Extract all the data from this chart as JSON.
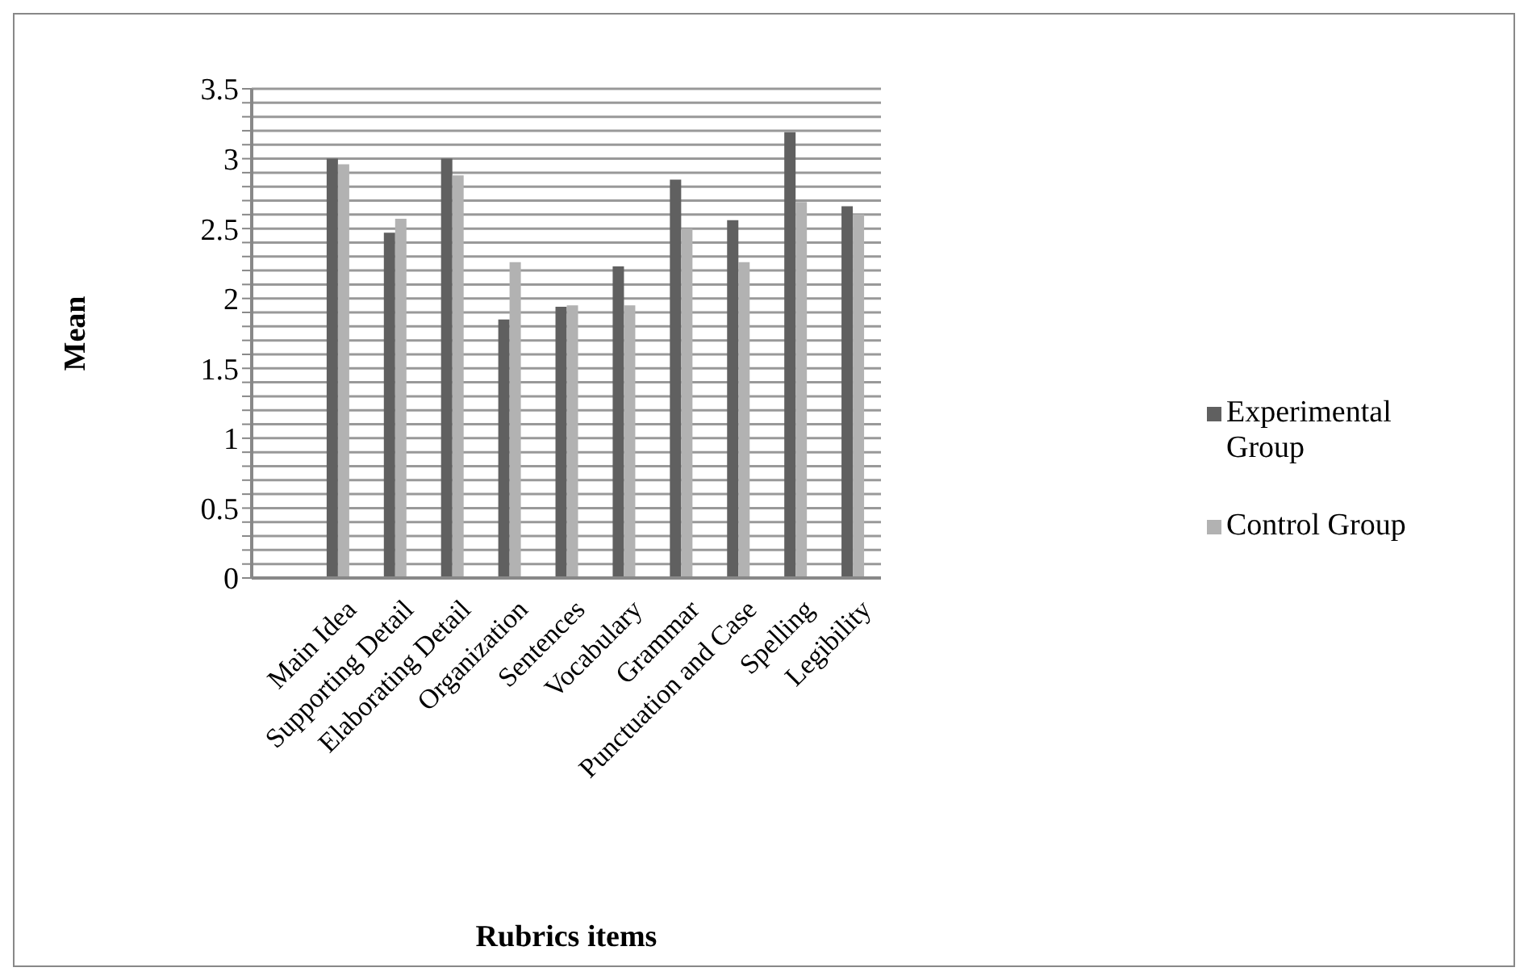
{
  "chart_data": {
    "type": "bar",
    "xlabel": "Rubrics items",
    "ylabel": "Mean",
    "categories": [
      null,
      "Main Idea",
      "Supporting Detail",
      "Elaborating Detail",
      "Organization",
      "Sentences",
      "Vocabulary",
      "Grammar",
      "Punctuation and Case",
      "Spelling",
      "Legibility"
    ],
    "series": [
      {
        "name": "Experimental Group",
        "color": "#606060",
        "values": [
          null,
          3.0,
          2.47,
          3.0,
          1.85,
          1.94,
          2.23,
          2.85,
          2.56,
          3.19,
          2.66
        ]
      },
      {
        "name": "Control Group",
        "color": "#b2b2b2",
        "values": [
          null,
          2.96,
          2.57,
          2.88,
          2.26,
          1.95,
          1.95,
          2.5,
          2.26,
          2.69,
          2.6
        ]
      }
    ],
    "ylim": [
      0,
      3.5
    ],
    "yticks": [
      0,
      {
        "value": 0.1,
        "label": null
      },
      {
        "value": 0.2,
        "label": null
      },
      {
        "value": 0.3,
        "label": null
      },
      {
        "value": 0.4,
        "label": null
      },
      0.5,
      {
        "value": 0.6,
        "label": null
      },
      {
        "value": 0.7,
        "label": null
      },
      {
        "value": 0.8,
        "label": null
      },
      {
        "value": 0.9,
        "label": null
      },
      1,
      {
        "value": 1.1,
        "label": null
      },
      {
        "value": 1.2,
        "label": null
      },
      {
        "value": 1.3,
        "label": null
      },
      {
        "value": 1.4,
        "label": null
      },
      1.5,
      {
        "value": 1.6,
        "label": null
      },
      {
        "value": 1.7,
        "label": null
      },
      {
        "value": 1.8,
        "label": null
      },
      {
        "value": 1.9,
        "label": null
      },
      2,
      {
        "value": 2.1,
        "label": null
      },
      {
        "value": 2.2,
        "label": null
      },
      {
        "value": 2.3,
        "label": null
      },
      {
        "value": 2.4,
        "label": null
      },
      2.5,
      {
        "value": 2.6,
        "label": null
      },
      {
        "value": 2.7,
        "label": null
      },
      {
        "value": 2.8,
        "label": null
      },
      {
        "value": 2.9,
        "label": null
      },
      3,
      {
        "value": 3.1,
        "label": null
      },
      {
        "value": 3.2,
        "label": null
      },
      {
        "value": 3.3,
        "label": null
      },
      {
        "value": 3.4,
        "label": null
      },
      3.5
    ],
    "grid": "y",
    "legend": "right"
  }
}
